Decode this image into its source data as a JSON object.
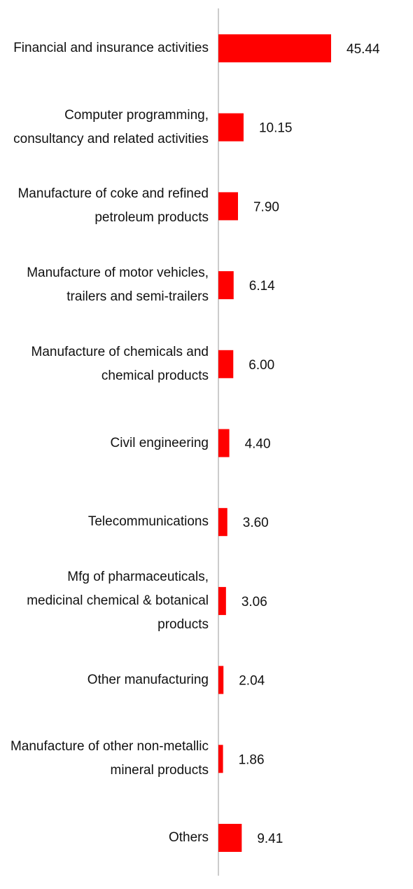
{
  "chart_data": {
    "type": "bar",
    "orientation": "horizontal",
    "categories": [
      "Financial and insurance activities",
      "Computer programming, consultancy and related activities",
      "Manufacture of coke and refined petroleum products",
      "Manufacture of motor vehicles, trailers and semi-trailers",
      "Manufacture of chemicals and chemical products",
      "Civil engineering",
      "Telecommunications",
      "Mfg of pharmaceuticals, medicinal chemical & botanical products",
      "Other manufacturing",
      "Manufacture of other non-metallic mineral products",
      "Others"
    ],
    "values": [
      45.44,
      10.15,
      7.9,
      6.14,
      6.0,
      4.4,
      3.6,
      3.06,
      2.04,
      1.86,
      9.41
    ],
    "value_labels": [
      "45.44",
      "10.15",
      "7.90",
      "6.14",
      "6.00",
      "4.40",
      "3.60",
      "3.06",
      "2.04",
      "1.86",
      "9.41"
    ],
    "color": "#ff0000"
  }
}
